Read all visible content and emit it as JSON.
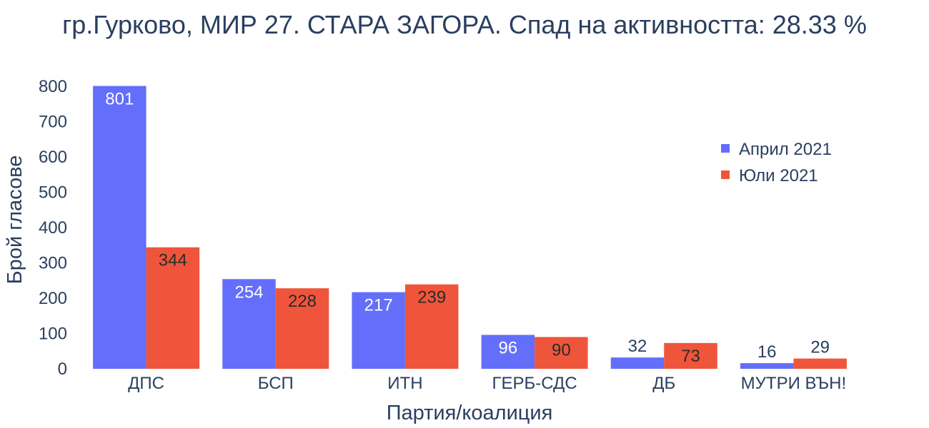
{
  "chart_data": {
    "type": "bar",
    "title": "гр.Гурково, МИР 27. СТАРА ЗАГОРА. Спад на активността: 28.33 %",
    "xlabel": "Партия/коалиция",
    "ylabel": "Брой гласове",
    "categories": [
      "ДПС",
      "БСП",
      "ИТН",
      "ГЕРБ-СДС",
      "ДБ",
      "МУТРИ ВЪН!"
    ],
    "series": [
      {
        "name": "Април 2021",
        "color": "#636efa",
        "values": [
          801,
          254,
          217,
          96,
          32,
          16
        ]
      },
      {
        "name": "Юли 2021",
        "color": "#ef553b",
        "values": [
          344,
          228,
          239,
          90,
          73,
          29
        ]
      }
    ],
    "ylim": [
      0,
      800
    ],
    "yticks": [
      0,
      100,
      200,
      300,
      400,
      500,
      600,
      700,
      800
    ],
    "grid": false,
    "legend_position": "top-right"
  }
}
